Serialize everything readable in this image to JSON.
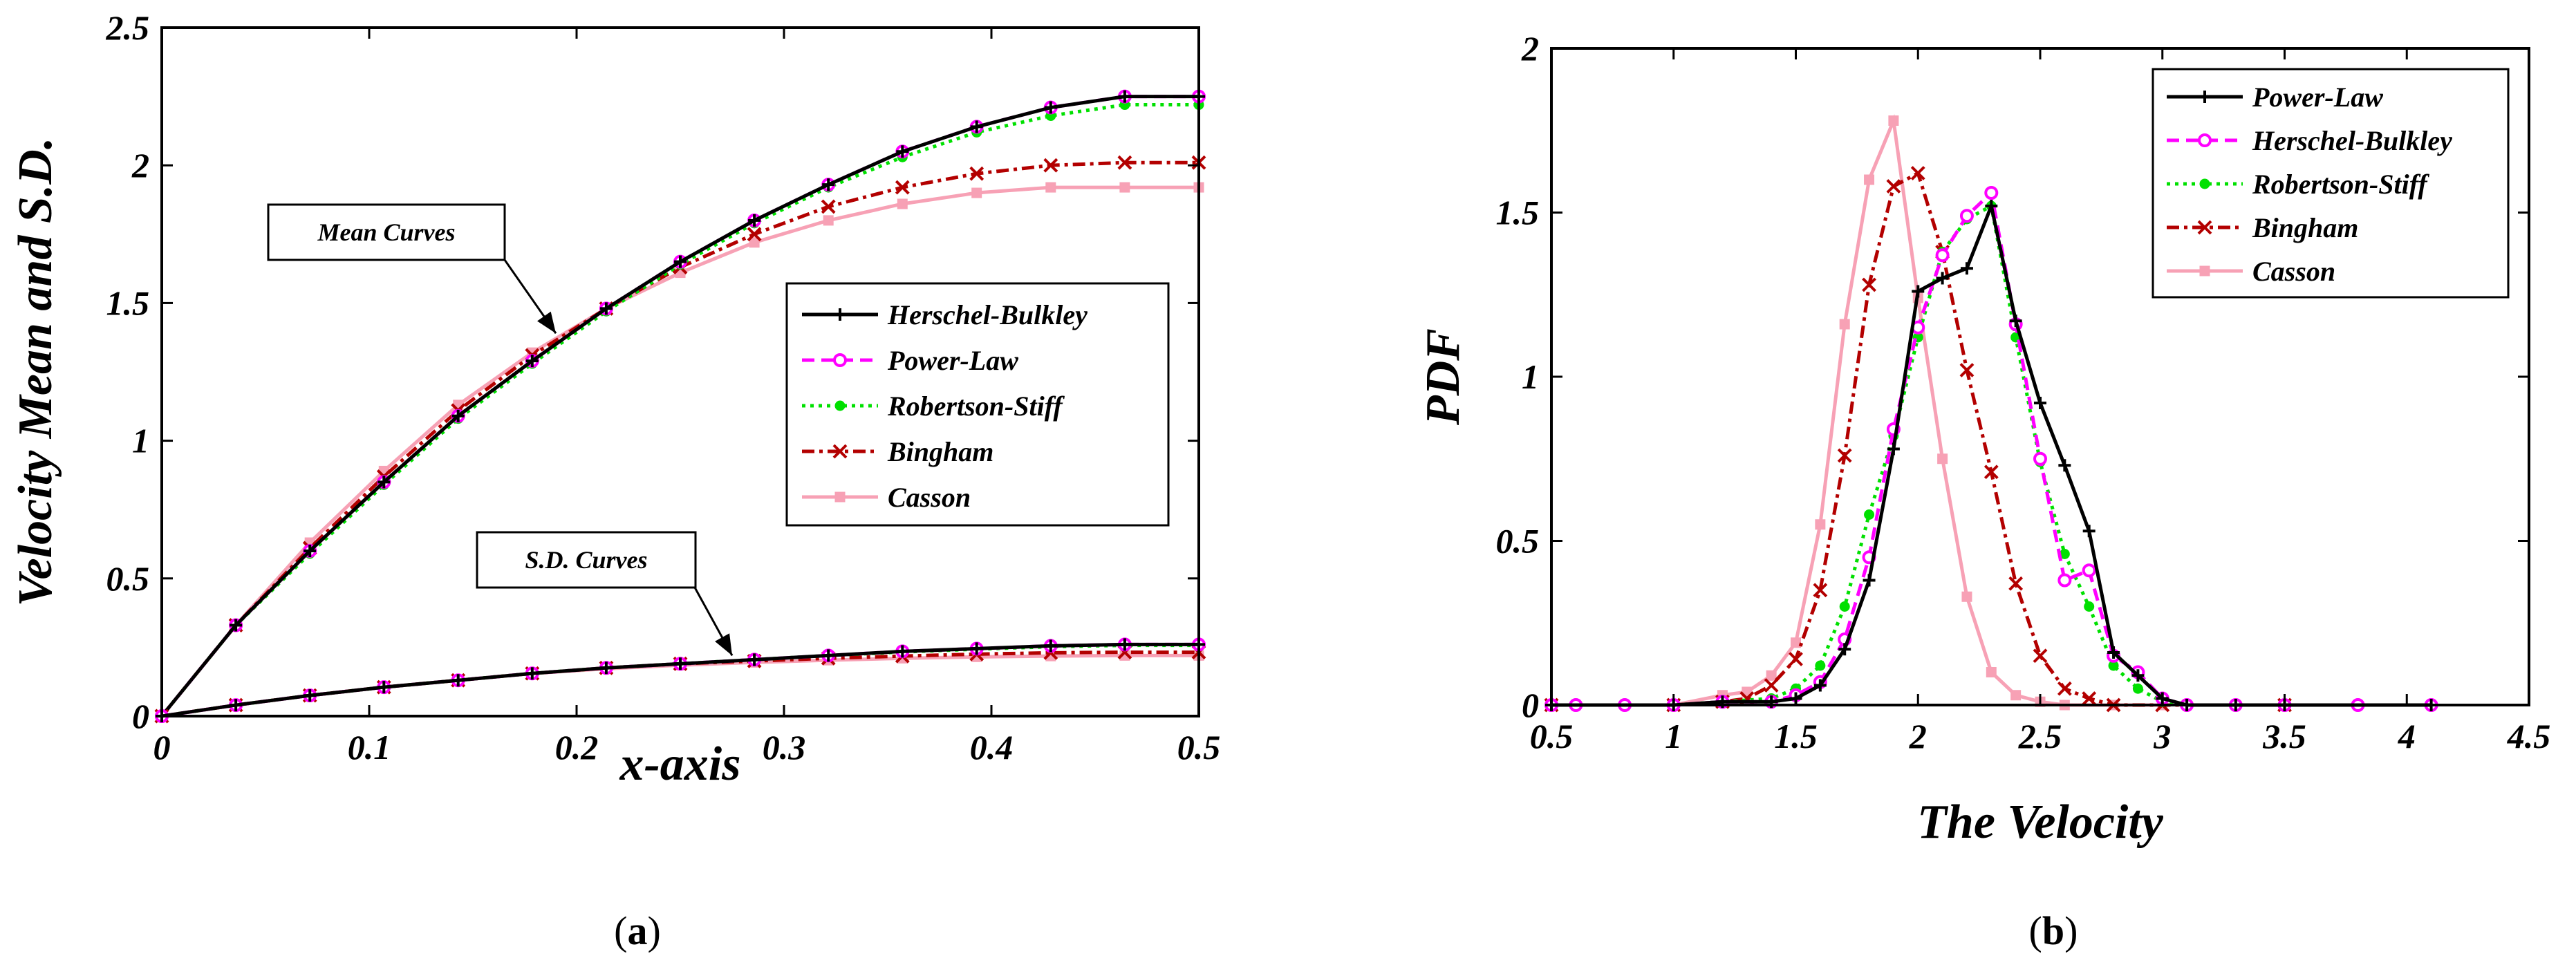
{
  "chart_data": [
    {
      "type": "line",
      "panel_label": "a",
      "xlabel": "x-axis",
      "ylabel": "Velocity Mean and S.D.",
      "xlim": [
        0,
        0.5
      ],
      "ylim": [
        0,
        2.5
      ],
      "xticks": [
        "0",
        "0.1",
        "0.2",
        "0.3",
        "0.4",
        "0.5"
      ],
      "xtick_values": [
        0,
        0.1,
        0.2,
        0.3,
        0.4,
        0.5
      ],
      "yticks": [
        "0",
        "0.5",
        "1",
        "1.5",
        "2",
        "2.5"
      ],
      "ytick_values": [
        0,
        0.5,
        1,
        1.5,
        2,
        2.5
      ],
      "x": [
        0,
        0.0357,
        0.0714,
        0.1071,
        0.1429,
        0.1786,
        0.2143,
        0.25,
        0.2857,
        0.3214,
        0.3571,
        0.3929,
        0.4286,
        0.4643,
        0.5
      ],
      "annotations": [
        {
          "text": "Mean Curves",
          "target": [
            0.19,
            1.39
          ]
        },
        {
          "text": "S.D. Curves",
          "target": [
            0.275,
            0.22
          ]
        }
      ],
      "series": [
        {
          "name": "Herschel-Bulkley",
          "group": "mean",
          "color": "#000000",
          "dash": "",
          "marker": "plus",
          "values": [
            0,
            0.33,
            0.6,
            0.85,
            1.09,
            1.29,
            1.48,
            1.65,
            1.8,
            1.93,
            2.05,
            2.14,
            2.21,
            2.25,
            2.25
          ]
        },
        {
          "name": "Power-Law",
          "group": "mean",
          "color": "#ff00ff",
          "dash": "18 10",
          "marker": "circle",
          "values": [
            0,
            0.33,
            0.6,
            0.85,
            1.09,
            1.29,
            1.48,
            1.65,
            1.8,
            1.93,
            2.05,
            2.14,
            2.21,
            2.25,
            2.25
          ]
        },
        {
          "name": "Robertson-Stiff",
          "group": "mean",
          "color": "#00e000",
          "dash": "5 7",
          "marker": "dot",
          "values": [
            0,
            0.33,
            0.59,
            0.84,
            1.08,
            1.28,
            1.47,
            1.64,
            1.79,
            1.92,
            2.03,
            2.12,
            2.18,
            2.22,
            2.22
          ]
        },
        {
          "name": "Bingham",
          "group": "mean",
          "color": "#b30000",
          "dash": "18 7 5 7",
          "marker": "x",
          "values": [
            0,
            0.33,
            0.61,
            0.87,
            1.11,
            1.31,
            1.48,
            1.63,
            1.75,
            1.85,
            1.92,
            1.97,
            2.0,
            2.01,
            2.01
          ]
        },
        {
          "name": "Casson",
          "group": "mean",
          "color": "#f7a1b5",
          "dash": "",
          "marker": "square",
          "values": [
            0,
            0.33,
            0.63,
            0.89,
            1.13,
            1.32,
            1.48,
            1.61,
            1.72,
            1.8,
            1.86,
            1.9,
            1.92,
            1.92,
            1.92
          ]
        },
        {
          "name": "Herschel-Bulkley",
          "group": "sd",
          "color": "#000000",
          "dash": "",
          "marker": "plus",
          "values": [
            0,
            0.04,
            0.075,
            0.105,
            0.13,
            0.155,
            0.175,
            0.19,
            0.205,
            0.22,
            0.235,
            0.245,
            0.255,
            0.26,
            0.26
          ]
        },
        {
          "name": "Power-Law",
          "group": "sd",
          "color": "#ff00ff",
          "dash": "18 10",
          "marker": "circle",
          "values": [
            0,
            0.04,
            0.075,
            0.105,
            0.13,
            0.155,
            0.175,
            0.19,
            0.205,
            0.22,
            0.235,
            0.245,
            0.255,
            0.26,
            0.26
          ]
        },
        {
          "name": "Robertson-Stiff",
          "group": "sd",
          "color": "#00e000",
          "dash": "5 7",
          "marker": "dot",
          "values": [
            0,
            0.04,
            0.075,
            0.105,
            0.13,
            0.155,
            0.175,
            0.19,
            0.205,
            0.22,
            0.233,
            0.243,
            0.252,
            0.257,
            0.257
          ]
        },
        {
          "name": "Bingham",
          "group": "sd",
          "color": "#b30000",
          "dash": "18 7 5 7",
          "marker": "x",
          "values": [
            0,
            0.04,
            0.075,
            0.105,
            0.13,
            0.155,
            0.175,
            0.19,
            0.2,
            0.21,
            0.218,
            0.225,
            0.23,
            0.232,
            0.232
          ]
        },
        {
          "name": "Casson",
          "group": "sd",
          "color": "#f7a1b5",
          "dash": "",
          "marker": "square",
          "values": [
            0,
            0.04,
            0.075,
            0.105,
            0.13,
            0.155,
            0.172,
            0.185,
            0.195,
            0.203,
            0.21,
            0.215,
            0.218,
            0.22,
            0.22
          ]
        }
      ],
      "legend": [
        "Herschel-Bulkley",
        "Power-Law",
        "Robertson-Stiff",
        "Bingham",
        "Casson"
      ]
    },
    {
      "type": "line",
      "panel_label": "b",
      "xlabel": "The Velocity",
      "ylabel": "PDF",
      "xlim": [
        0.5,
        4.5
      ],
      "ylim": [
        0,
        2
      ],
      "xticks": [
        "0.5",
        "1",
        "1.5",
        "2",
        "2.5",
        "3",
        "3.5",
        "4",
        "4.5"
      ],
      "xtick_values": [
        0.5,
        1,
        1.5,
        2,
        2.5,
        3,
        3.5,
        4,
        4.5
      ],
      "yticks": [
        "0",
        "0.5",
        "1",
        "1.5",
        "2"
      ],
      "ytick_values": [
        0,
        0.5,
        1,
        1.5,
        2
      ],
      "series": [
        {
          "name": "Power-Law",
          "color": "#000000",
          "dash": "",
          "marker": "plus",
          "x": [
            0.5,
            1.0,
            1.2,
            1.4,
            1.5,
            1.6,
            1.7,
            1.8,
            1.9,
            2.0,
            2.1,
            2.2,
            2.3,
            2.4,
            2.5,
            2.6,
            2.7,
            2.8,
            2.9,
            3.0,
            3.1,
            3.3,
            3.5,
            4.1
          ],
          "y": [
            0,
            0,
            0.01,
            0.01,
            0.02,
            0.06,
            0.17,
            0.38,
            0.78,
            1.26,
            1.3,
            1.33,
            1.52,
            1.17,
            0.92,
            0.73,
            0.53,
            0.16,
            0.09,
            0.02,
            0,
            0,
            0,
            0
          ]
        },
        {
          "name": "Herschel-Bulkley",
          "color": "#ff00ff",
          "dash": "18 10",
          "marker": "circle",
          "x": [
            0.5,
            0.6,
            0.8,
            1.0,
            1.2,
            1.4,
            1.5,
            1.6,
            1.7,
            1.8,
            1.9,
            2.0,
            2.1,
            2.2,
            2.3,
            2.4,
            2.5,
            2.6,
            2.7,
            2.8,
            2.9,
            3.0,
            3.1,
            3.3,
            3.5,
            3.8,
            4.1
          ],
          "y": [
            0,
            0,
            0,
            0,
            0.01,
            0.01,
            0.03,
            0.07,
            0.2,
            0.45,
            0.84,
            1.15,
            1.37,
            1.49,
            1.56,
            1.16,
            0.75,
            0.38,
            0.41,
            0.15,
            0.1,
            0.02,
            0,
            0,
            0,
            0,
            0
          ]
        },
        {
          "name": "Robertson-Stiff",
          "color": "#00e000",
          "dash": "5 7",
          "marker": "dot",
          "x": [
            0.5,
            1.0,
            1.2,
            1.4,
            1.5,
            1.6,
            1.7,
            1.8,
            1.9,
            2.0,
            2.1,
            2.2,
            2.3,
            2.4,
            2.5,
            2.6,
            2.7,
            2.8,
            2.9,
            3.0,
            3.1,
            3.5,
            4.1
          ],
          "y": [
            0,
            0,
            0.01,
            0.02,
            0.05,
            0.12,
            0.3,
            0.58,
            0.82,
            1.12,
            1.38,
            1.48,
            1.52,
            1.12,
            0.74,
            0.46,
            0.3,
            0.12,
            0.05,
            0.01,
            0,
            0,
            0
          ]
        },
        {
          "name": "Bingham",
          "color": "#b30000",
          "dash": "18 7 5 7",
          "marker": "x",
          "x": [
            0.5,
            1.0,
            1.2,
            1.3,
            1.4,
            1.5,
            1.6,
            1.7,
            1.8,
            1.9,
            2.0,
            2.1,
            2.2,
            2.3,
            2.4,
            2.5,
            2.6,
            2.7,
            2.8,
            3.0,
            3.5
          ],
          "y": [
            0,
            0,
            0.01,
            0.02,
            0.06,
            0.14,
            0.35,
            0.76,
            1.28,
            1.58,
            1.62,
            1.38,
            1.02,
            0.71,
            0.37,
            0.15,
            0.05,
            0.02,
            0,
            0,
            0
          ]
        },
        {
          "name": "Casson",
          "color": "#f7a1b5",
          "dash": "",
          "marker": "square",
          "x": [
            0.5,
            1.0,
            1.2,
            1.3,
            1.4,
            1.5,
            1.6,
            1.7,
            1.8,
            1.9,
            2.0,
            2.1,
            2.2,
            2.3,
            2.4,
            2.5,
            2.6,
            2.8,
            3.0
          ],
          "y": [
            0,
            0,
            0.03,
            0.04,
            0.09,
            0.19,
            0.55,
            1.16,
            1.6,
            1.78,
            1.24,
            0.75,
            0.33,
            0.1,
            0.03,
            0.01,
            0,
            0,
            0
          ]
        }
      ],
      "legend": [
        "Power-Law",
        "Herschel-Bulkley",
        "Robertson-Stiff",
        "Bingham",
        "Casson"
      ]
    }
  ]
}
